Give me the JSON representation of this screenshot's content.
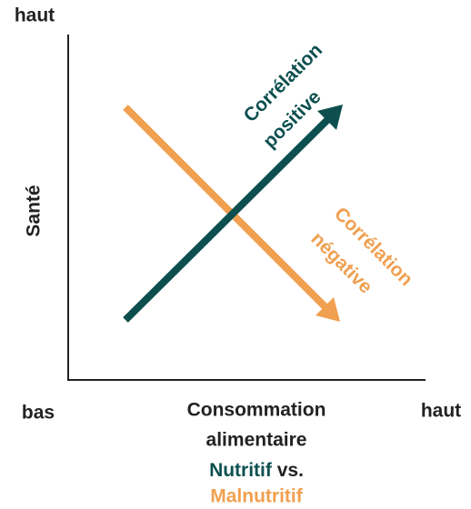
{
  "axes": {
    "y_high": "haut",
    "y_label": "Santé",
    "x_low": "bas",
    "x_high": "haut",
    "x_label_lines": [
      "Consommation",
      "alimentaire"
    ],
    "x_label_nutritive": "Nutritif",
    "x_label_vs": "vs.",
    "x_label_malnutritive": "Malnutritif"
  },
  "lines": [
    {
      "label_lines": [
        "Corrélation",
        "positive"
      ]
    },
    {
      "label_lines": [
        "Corrélation",
        "négative"
      ]
    }
  ]
}
